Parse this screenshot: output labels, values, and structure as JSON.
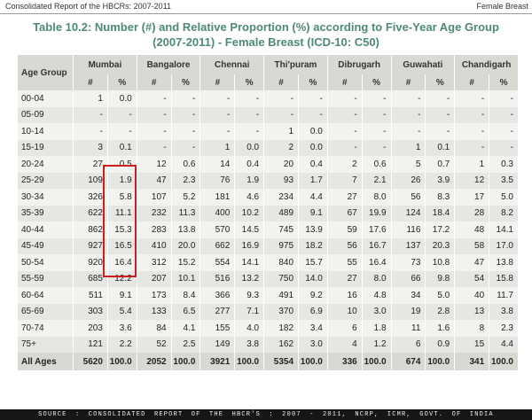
{
  "header": {
    "left": "Consolidated Report of the HBCRs: 2007-2011",
    "right": "Female Breast"
  },
  "title": {
    "line1": "Table 10.2: Number (#) and Relative Proportion (%) according to Five-Year Age Group",
    "line2": "(2007-2011) - Female Breast (ICD-10: C50)"
  },
  "table": {
    "age_header": "Age Group",
    "sub_num": "#",
    "sub_pct": "%",
    "registries": [
      "Mumbai",
      "Bangalore",
      "Chennai",
      "Thi'puram",
      "Dibrugarh",
      "Guwahati",
      "Chandigarh"
    ],
    "rows": [
      {
        "age": "00-04",
        "cells": [
          "1",
          "0.0",
          "-",
          "-",
          "-",
          "-",
          "-",
          "-",
          "-",
          "-",
          "-",
          "-",
          "-",
          "-"
        ]
      },
      {
        "age": "05-09",
        "cells": [
          "-",
          "-",
          "-",
          "-",
          "-",
          "-",
          "-",
          "-",
          "-",
          "-",
          "-",
          "-",
          "-",
          "-"
        ]
      },
      {
        "age": "10-14",
        "cells": [
          "-",
          "-",
          "-",
          "-",
          "-",
          "-",
          "1",
          "0.0",
          "-",
          "-",
          "-",
          "-",
          "-",
          "-"
        ]
      },
      {
        "age": "15-19",
        "cells": [
          "3",
          "0.1",
          "-",
          "-",
          "1",
          "0.0",
          "2",
          "0.0",
          "-",
          "-",
          "1",
          "0.1",
          "-",
          "-"
        ]
      },
      {
        "age": "20-24",
        "cells": [
          "27",
          "0.5",
          "12",
          "0.6",
          "14",
          "0.4",
          "20",
          "0.4",
          "2",
          "0.6",
          "5",
          "0.7",
          "1",
          "0.3"
        ]
      },
      {
        "age": "25-29",
        "cells": [
          "109",
          "1.9",
          "47",
          "2.3",
          "76",
          "1.9",
          "93",
          "1.7",
          "7",
          "2.1",
          "26",
          "3.9",
          "12",
          "3.5"
        ]
      },
      {
        "age": "30-34",
        "cells": [
          "326",
          "5.8",
          "107",
          "5.2",
          "181",
          "4.6",
          "234",
          "4.4",
          "27",
          "8.0",
          "56",
          "8.3",
          "17",
          "5.0"
        ]
      },
      {
        "age": "35-39",
        "cells": [
          "622",
          "11.1",
          "232",
          "11.3",
          "400",
          "10.2",
          "489",
          "9.1",
          "67",
          "19.9",
          "124",
          "18.4",
          "28",
          "8.2"
        ]
      },
      {
        "age": "40-44",
        "cells": [
          "862",
          "15.3",
          "283",
          "13.8",
          "570",
          "14.5",
          "745",
          "13.9",
          "59",
          "17.6",
          "116",
          "17.2",
          "48",
          "14.1"
        ]
      },
      {
        "age": "45-49",
        "cells": [
          "927",
          "16.5",
          "410",
          "20.0",
          "662",
          "16.9",
          "975",
          "18.2",
          "56",
          "16.7",
          "137",
          "20.3",
          "58",
          "17.0"
        ]
      },
      {
        "age": "50-54",
        "cells": [
          "920",
          "16.4",
          "312",
          "15.2",
          "554",
          "14.1",
          "840",
          "15.7",
          "55",
          "16.4",
          "73",
          "10.8",
          "47",
          "13.8"
        ]
      },
      {
        "age": "55-59",
        "cells": [
          "685",
          "12.2",
          "207",
          "10.1",
          "516",
          "13.2",
          "750",
          "14.0",
          "27",
          "8.0",
          "66",
          "9.8",
          "54",
          "15.8"
        ]
      },
      {
        "age": "60-64",
        "cells": [
          "511",
          "9.1",
          "173",
          "8.4",
          "366",
          "9.3",
          "491",
          "9.2",
          "16",
          "4.8",
          "34",
          "5.0",
          "40",
          "11.7"
        ]
      },
      {
        "age": "65-69",
        "cells": [
          "303",
          "5.4",
          "133",
          "6.5",
          "277",
          "7.1",
          "370",
          "6.9",
          "10",
          "3.0",
          "19",
          "2.8",
          "13",
          "3.8"
        ]
      },
      {
        "age": "70-74",
        "cells": [
          "203",
          "3.6",
          "84",
          "4.1",
          "155",
          "4.0",
          "182",
          "3.4",
          "6",
          "1.8",
          "11",
          "1.6",
          "8",
          "2.3"
        ]
      },
      {
        "age": "75+",
        "cells": [
          "121",
          "2.2",
          "52",
          "2.5",
          "149",
          "3.8",
          "162",
          "3.0",
          "4",
          "1.2",
          "6",
          "0.9",
          "15",
          "4.4"
        ]
      }
    ],
    "total": {
      "age": "All Ages",
      "cells": [
        "5620",
        "100.0",
        "2052",
        "100.0",
        "3921",
        "100.0",
        "5354",
        "100.0",
        "336",
        "100.0",
        "674",
        "100.0",
        "341",
        "100.0"
      ]
    }
  },
  "source_line": "SOURCE : CONSOLIDATED REPORT OF THE HBCR'S : 2007 - 2011, NCRP, ICMR, GOVT. OF INDIA",
  "colors": {
    "title": "#4e8a72",
    "header_bg": "#d9d9d4",
    "row_light": "#f2f2ef",
    "row_dark": "#e6e6e2",
    "highlight_box": "#cc1e1e",
    "source_bar": "#161616"
  }
}
